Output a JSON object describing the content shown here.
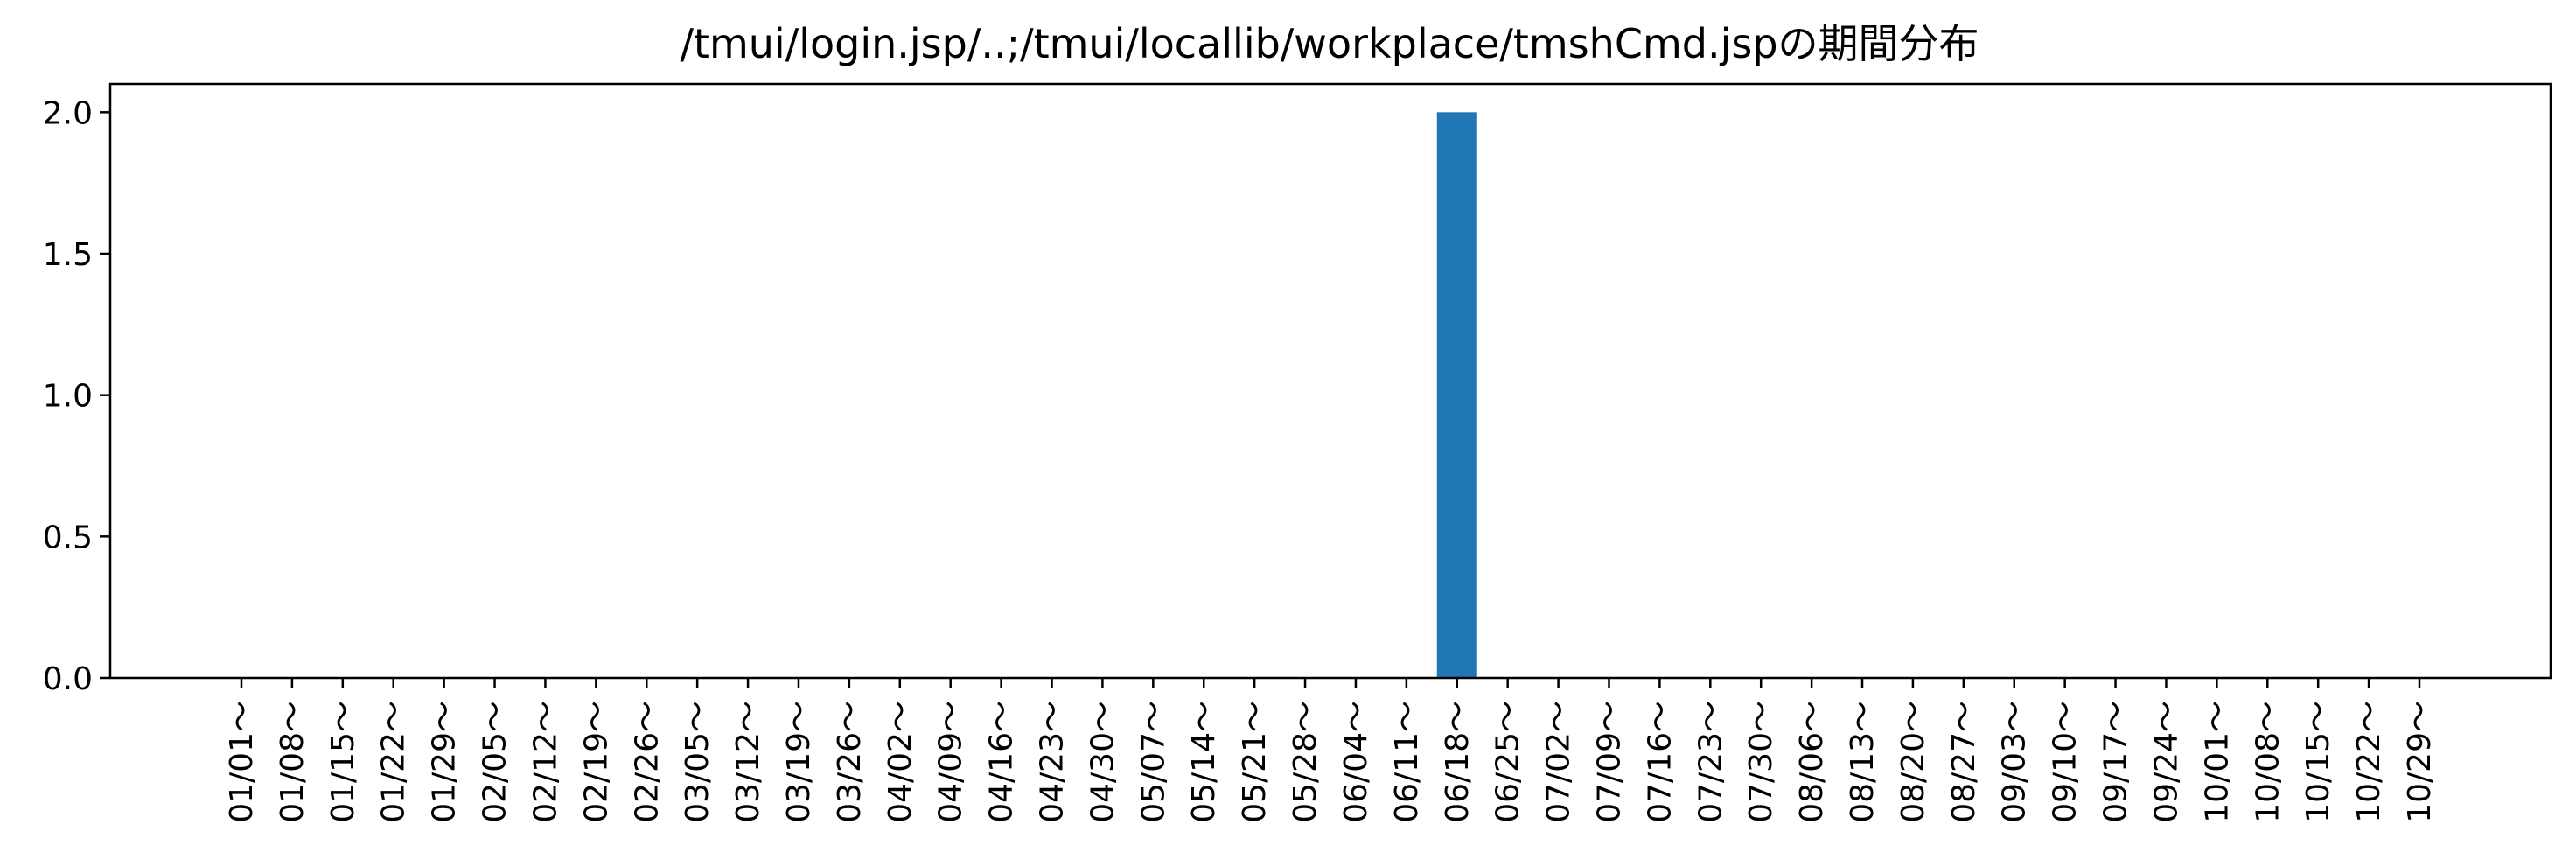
{
  "chart_data": {
    "type": "bar",
    "title": "/tmui/login.jsp/..;/tmui/locallib/workplace/tmshCmd.jspの期間分布",
    "xlabel": "",
    "ylabel": "",
    "ylim": [
      0,
      2.1
    ],
    "yticks": [
      "0.0",
      "0.5",
      "1.0",
      "1.5",
      "2.0"
    ],
    "grid": false,
    "bar_color": "#1f77b4",
    "categories": [
      "01/01～",
      "01/08～",
      "01/15～",
      "01/22～",
      "01/29～",
      "02/05～",
      "02/12～",
      "02/19～",
      "02/26～",
      "03/05～",
      "03/12～",
      "03/19～",
      "03/26～",
      "04/02～",
      "04/09～",
      "04/16～",
      "04/23～",
      "04/30～",
      "05/07～",
      "05/14～",
      "05/21～",
      "05/28～",
      "06/04～",
      "06/11～",
      "06/18～",
      "06/25～",
      "07/02～",
      "07/09～",
      "07/16～",
      "07/23～",
      "07/30～",
      "08/06～",
      "08/13～",
      "08/20～",
      "08/27～",
      "09/03～",
      "09/10～",
      "09/17～",
      "09/24～",
      "10/01～",
      "10/08～",
      "10/15～",
      "10/22～",
      "10/29～"
    ],
    "values": [
      0,
      0,
      0,
      0,
      0,
      0,
      0,
      0,
      0,
      0,
      0,
      0,
      0,
      0,
      0,
      0,
      0,
      0,
      0,
      0,
      0,
      0,
      0,
      0,
      2,
      0,
      0,
      0,
      0,
      0,
      0,
      0,
      0,
      0,
      0,
      0,
      0,
      0,
      0,
      0,
      0,
      0,
      0,
      0
    ]
  }
}
